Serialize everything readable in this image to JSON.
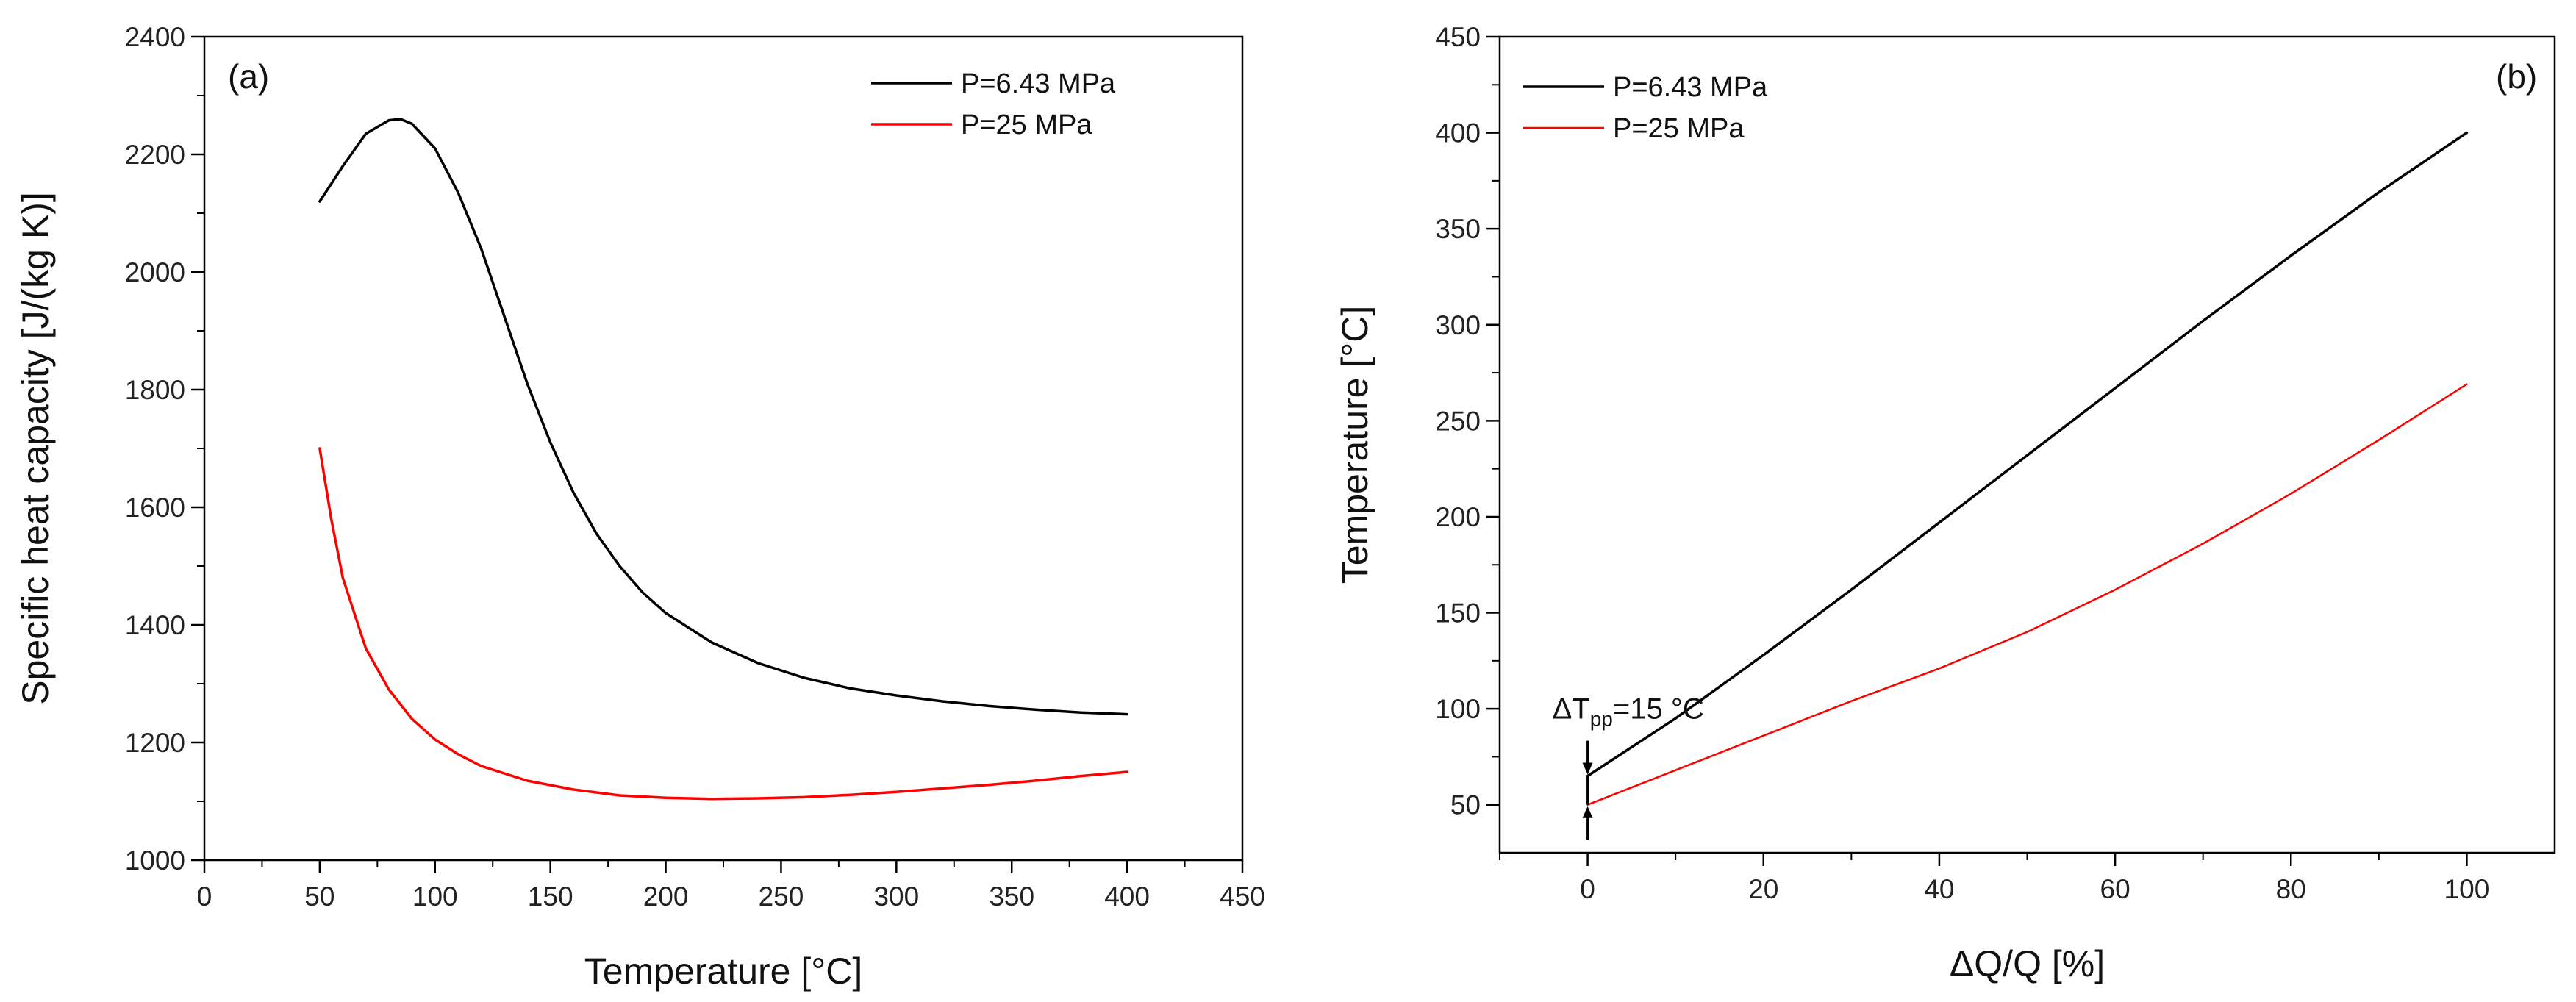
{
  "chart_data": [
    {
      "type": "line",
      "panel_label": "(a)",
      "title": "",
      "xlabel": "Temperature [°C]",
      "ylabel": "Specific heat capacity [J/(kg K)]",
      "xlim": [
        0,
        450
      ],
      "ylim": [
        1000,
        2400
      ],
      "xticks": [
        0,
        50,
        100,
        150,
        200,
        250,
        300,
        350,
        400,
        450
      ],
      "yticks": [
        1000,
        1200,
        1400,
        1600,
        1800,
        2000,
        2200,
        2400
      ],
      "legend_position": "top-right",
      "series": [
        {
          "name": "P=6.43 MPa",
          "color": "#000000",
          "x": [
            50,
            60,
            70,
            80,
            85,
            90,
            100,
            110,
            120,
            130,
            140,
            150,
            160,
            170,
            180,
            190,
            200,
            220,
            240,
            260,
            280,
            300,
            320,
            340,
            360,
            380,
            400
          ],
          "y": [
            2120,
            2180,
            2235,
            2258,
            2260,
            2252,
            2210,
            2135,
            2040,
            1925,
            1810,
            1710,
            1625,
            1555,
            1500,
            1455,
            1420,
            1370,
            1335,
            1310,
            1292,
            1280,
            1270,
            1262,
            1256,
            1251,
            1248
          ]
        },
        {
          "name": "P=25 MPa",
          "color": "#ff0000",
          "x": [
            50,
            55,
            60,
            70,
            80,
            90,
            100,
            110,
            120,
            140,
            160,
            180,
            200,
            220,
            240,
            260,
            280,
            300,
            320,
            340,
            360,
            380,
            400
          ],
          "y": [
            1700,
            1580,
            1480,
            1360,
            1290,
            1240,
            1205,
            1180,
            1160,
            1135,
            1120,
            1110,
            1106,
            1104,
            1105,
            1107,
            1111,
            1116,
            1122,
            1128,
            1135,
            1143,
            1150
          ]
        }
      ]
    },
    {
      "type": "line",
      "panel_label": "(b)",
      "title": "",
      "xlabel": "ΔQ/Q [%]",
      "ylabel": "Temperature [°C]",
      "xlim": [
        -10,
        110
      ],
      "ylim": [
        25,
        450
      ],
      "xticks": [
        0,
        20,
        40,
        60,
        80,
        100
      ],
      "yticks": [
        50,
        100,
        150,
        200,
        250,
        300,
        350,
        400,
        450
      ],
      "legend_position": "top-left",
      "annotation": {
        "base": "ΔT",
        "sub": "pp",
        "rest": "=15 °C",
        "x": 0,
        "y_top": 65,
        "y_bottom": 50
      },
      "series": [
        {
          "name": "P=6.43 MPa",
          "color": "#000000",
          "x": [
            0,
            10,
            20,
            30,
            40,
            50,
            60,
            70,
            80,
            90,
            100
          ],
          "y": [
            65,
            95,
            128,
            162,
            197,
            232,
            267,
            302,
            336,
            369,
            400
          ]
        },
        {
          "name": "P=25 MPa",
          "color": "#ff0000",
          "x": [
            0,
            10,
            20,
            30,
            40,
            50,
            60,
            70,
            80,
            90,
            100
          ],
          "y": [
            50,
            68,
            86,
            104,
            121,
            140,
            162,
            186,
            212,
            240,
            269
          ]
        }
      ]
    }
  ]
}
